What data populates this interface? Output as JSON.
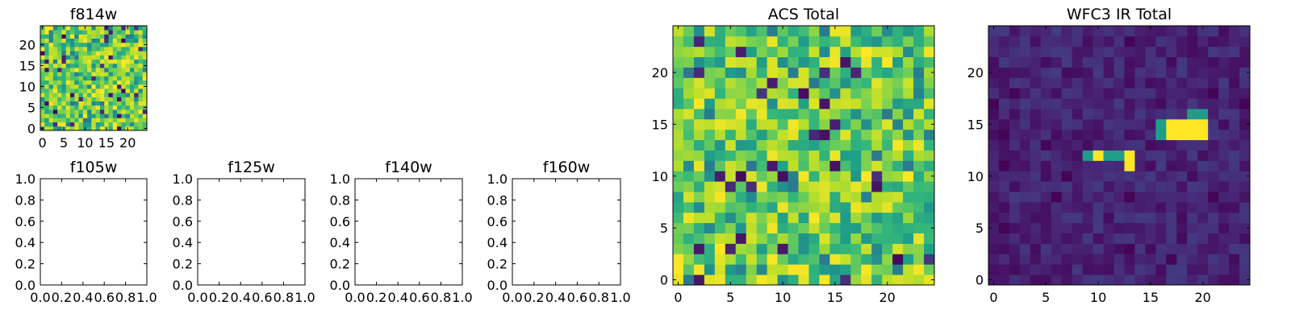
{
  "chart_data": [
    {
      "type": "heatmap",
      "title": "f814w",
      "grid_size": [
        25,
        25
      ],
      "xlim": [
        -0.5,
        24.5
      ],
      "ylim": [
        -0.5,
        24.5
      ],
      "xticks": [
        0,
        5,
        10,
        15,
        20
      ],
      "yticks": [
        0,
        5,
        10,
        15,
        20
      ],
      "colormap": "viridis",
      "style": "noisy-bright",
      "seed": 11
    },
    {
      "type": "empty",
      "title": "f105w",
      "xlim": [
        0,
        1
      ],
      "ylim": [
        0,
        1
      ],
      "xticks": [
        "0.0",
        "0.2",
        "0.4",
        "0.6",
        "0.8",
        "1.0"
      ],
      "yticks": [
        "0.0",
        "0.2",
        "0.4",
        "0.6",
        "0.8",
        "1.0"
      ]
    },
    {
      "type": "empty",
      "title": "f125w",
      "xlim": [
        0,
        1
      ],
      "ylim": [
        0,
        1
      ],
      "xticks": [
        "0.0",
        "0.2",
        "0.4",
        "0.6",
        "0.8",
        "1.0"
      ],
      "yticks": [
        "0.0",
        "0.2",
        "0.4",
        "0.6",
        "0.8",
        "1.0"
      ]
    },
    {
      "type": "empty",
      "title": "f140w",
      "xlim": [
        0,
        1
      ],
      "ylim": [
        0,
        1
      ],
      "xticks": [
        "0.0",
        "0.2",
        "0.4",
        "0.6",
        "0.8",
        "1.0"
      ],
      "yticks": [
        "0.0",
        "0.2",
        "0.4",
        "0.6",
        "0.8",
        "1.0"
      ]
    },
    {
      "type": "empty",
      "title": "f160w",
      "xlim": [
        0,
        1
      ],
      "ylim": [
        0,
        1
      ],
      "xticks": [
        "0.0",
        "0.2",
        "0.4",
        "0.6",
        "0.8",
        "1.0"
      ],
      "yticks": [
        "0.0",
        "0.2",
        "0.4",
        "0.6",
        "0.8",
        "1.0"
      ]
    },
    {
      "type": "heatmap",
      "title": "ACS Total",
      "grid_size": [
        25,
        25
      ],
      "xlim": [
        -0.5,
        24.5
      ],
      "ylim": [
        -0.5,
        24.5
      ],
      "xticks": [
        0,
        5,
        10,
        15,
        20
      ],
      "yticks": [
        0,
        5,
        10,
        15,
        20
      ],
      "colormap": "viridis",
      "style": "noisy-bright",
      "seed": 37
    },
    {
      "type": "heatmap",
      "title": "WFC3 IR Total",
      "grid_size": [
        25,
        25
      ],
      "xlim": [
        -0.5,
        24.5
      ],
      "ylim": [
        -0.5,
        24.5
      ],
      "xticks": [
        0,
        5,
        10,
        15,
        20
      ],
      "yticks": [
        0,
        5,
        10,
        15,
        20
      ],
      "colormap": "viridis",
      "style": "dark-with-sources",
      "seed": 5,
      "bright_cells": [
        [
          17,
          14
        ],
        [
          18,
          14
        ],
        [
          19,
          14
        ],
        [
          20,
          14
        ],
        [
          17,
          15
        ],
        [
          18,
          15
        ],
        [
          19,
          15
        ],
        [
          20,
          15
        ],
        [
          13,
          11
        ],
        [
          13,
          12
        ],
        [
          10,
          12
        ]
      ],
      "mid_cells": [
        [
          19,
          16
        ],
        [
          20,
          16
        ],
        [
          9,
          12
        ],
        [
          11,
          12
        ],
        [
          12,
          12
        ],
        [
          16,
          14
        ],
        [
          16,
          15
        ]
      ]
    }
  ]
}
